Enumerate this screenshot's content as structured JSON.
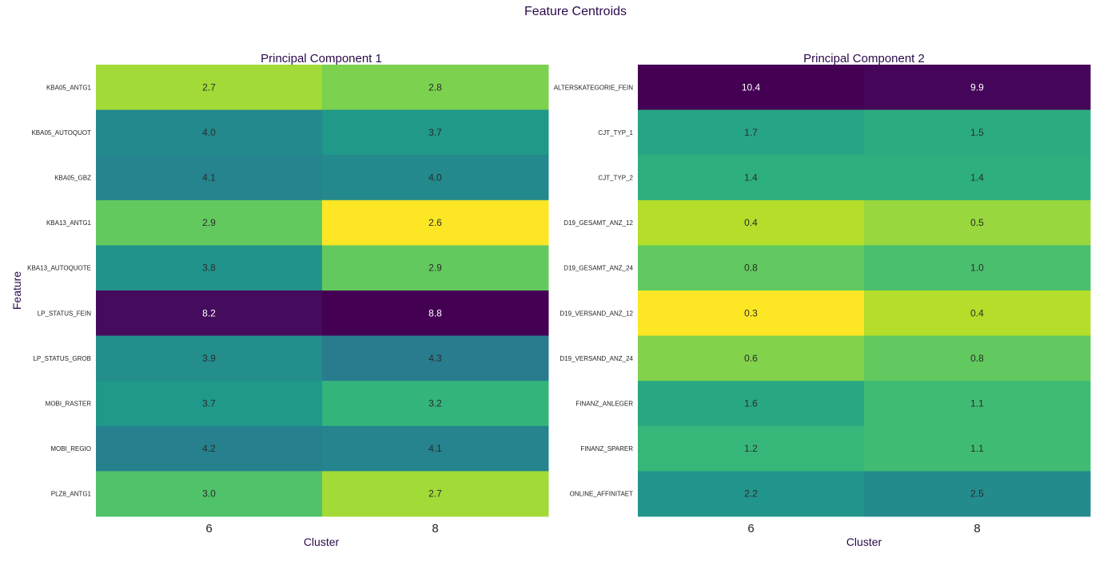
{
  "figure": {
    "title": "Feature Centroids"
  },
  "chart_data": [
    {
      "type": "heatmap",
      "title": "Principal Component 1",
      "xlabel": "Cluster",
      "ylabel": "Feature",
      "x": [
        "6",
        "8"
      ],
      "y": [
        "KBA05_ANTG1",
        "KBA05_AUTOQUOT",
        "KBA05_GBZ",
        "KBA13_ANTG1",
        "KBA13_AUTOQUOTE",
        "LP_STATUS_FEIN",
        "LP_STATUS_GROB",
        "MOBI_RASTER",
        "MOBI_REGIO",
        "PLZ8_ANTG1"
      ],
      "values": [
        [
          2.7,
          2.8
        ],
        [
          4.0,
          3.7
        ],
        [
          4.1,
          4.0
        ],
        [
          2.9,
          2.6
        ],
        [
          3.8,
          2.9
        ],
        [
          8.2,
          8.8
        ],
        [
          3.9,
          4.3
        ],
        [
          3.7,
          3.2
        ],
        [
          4.2,
          4.1
        ],
        [
          3.0,
          2.7
        ]
      ],
      "labels": [
        [
          "2.7",
          "2.8"
        ],
        [
          "4.0",
          "3.7"
        ],
        [
          "4.1",
          "4.0"
        ],
        [
          "2.9",
          "2.6"
        ],
        [
          "3.8",
          "2.9"
        ],
        [
          "8.2",
          "8.8"
        ],
        [
          "3.9",
          "4.3"
        ],
        [
          "3.7",
          "3.2"
        ],
        [
          "4.2",
          "4.1"
        ],
        [
          "3.0",
          "2.7"
        ]
      ],
      "colorscale": "viridis reversed"
    },
    {
      "type": "heatmap",
      "title": "Principal Component 2",
      "xlabel": "Cluster",
      "ylabel": "",
      "x": [
        "6",
        "8"
      ],
      "y": [
        "ALTERSKATEGORIE_FEIN",
        "CJT_TYP_1",
        "CJT_TYP_2",
        "D19_GESAMT_ANZ_12",
        "D19_GESAMT_ANZ_24",
        "D19_VERSAND_ANZ_12",
        "D19_VERSAND_ANZ_24",
        "FINANZ_ANLEGER",
        "FINANZ_SPARER",
        "ONLINE_AFFINITAET"
      ],
      "values": [
        [
          10.4,
          9.9
        ],
        [
          1.7,
          1.5
        ],
        [
          1.4,
          1.4
        ],
        [
          0.4,
          0.5
        ],
        [
          0.8,
          1.0
        ],
        [
          0.3,
          0.4
        ],
        [
          0.6,
          0.8
        ],
        [
          1.6,
          1.1
        ],
        [
          1.2,
          1.1
        ],
        [
          2.2,
          2.5
        ]
      ],
      "labels": [
        [
          "10.4",
          "9.9"
        ],
        [
          "1.7",
          "1.5"
        ],
        [
          "1.4",
          "1.4"
        ],
        [
          "0.4",
          "0.5"
        ],
        [
          "0.8",
          "1.0"
        ],
        [
          "0.3",
          "0.4"
        ],
        [
          "0.6",
          "0.8"
        ],
        [
          "1.6",
          "1.1"
        ],
        [
          "1.2",
          "1.1"
        ],
        [
          "2.2",
          "2.5"
        ]
      ],
      "colorscale": "viridis reversed"
    }
  ]
}
